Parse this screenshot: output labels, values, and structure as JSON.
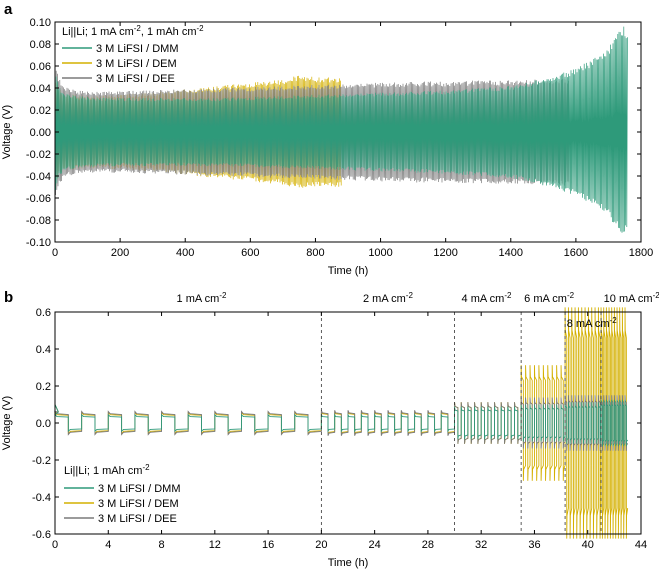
{
  "chart_data": [
    {
      "panel_label": "a",
      "type": "line",
      "title": "",
      "xlabel": "Time (h)",
      "ylabel": "Voltage (V)",
      "xlim": [
        0,
        1800
      ],
      "ylim": [
        -0.1,
        0.1
      ],
      "x_ticks": [
        0,
        200,
        400,
        600,
        800,
        1000,
        1200,
        1400,
        1600,
        1800
      ],
      "y_ticks": [
        -0.1,
        -0.08,
        -0.06,
        -0.04,
        -0.02,
        0.0,
        0.02,
        0.04,
        0.06,
        0.08,
        0.1
      ],
      "x_tick_labels": [
        "0",
        "200",
        "400",
        "600",
        "800",
        "1000",
        "1200",
        "1400",
        "1600",
        "1800"
      ],
      "y_tick_labels": [
        "-0.10",
        "-0.08",
        "-0.06",
        "-0.04",
        "-0.02",
        "0.00",
        "0.02",
        "0.04",
        "0.06",
        "0.08",
        "0.10"
      ],
      "legend": {
        "title": "Li||Li; 1 mA cm",
        "title_sup": "-2",
        "title_mid": ", 1 mAh cm",
        "title_sup2": "-2",
        "position": "top-left"
      },
      "series": [
        {
          "name": "3 M LiFSI / DMM",
          "color": "#2e9a7a",
          "envelope": {
            "x": [
              0,
              10,
              30,
              60,
              100,
              200,
              300,
              400,
              500,
              600,
              700,
              800,
              900,
              1000,
              1100,
              1200,
              1300,
              1400,
              1450,
              1500,
              1550,
              1600,
              1650,
              1700,
              1730,
              1745,
              1760
            ],
            "upper": [
              0.058,
              0.042,
              0.036,
              0.033,
              0.032,
              0.031,
              0.031,
              0.031,
              0.031,
              0.032,
              0.033,
              0.034,
              0.035,
              0.036,
              0.037,
              0.038,
              0.04,
              0.042,
              0.045,
              0.049,
              0.053,
              0.058,
              0.066,
              0.077,
              0.09,
              0.098,
              0.09
            ],
            "lower": [
              -0.058,
              -0.042,
              -0.036,
              -0.033,
              -0.032,
              -0.031,
              -0.031,
              -0.031,
              -0.031,
              -0.032,
              -0.033,
              -0.034,
              -0.035,
              -0.036,
              -0.037,
              -0.038,
              -0.04,
              -0.042,
              -0.045,
              -0.049,
              -0.053,
              -0.058,
              -0.066,
              -0.077,
              -0.09,
              -0.098,
              -0.09
            ]
          }
        },
        {
          "name": "3 M LiFSI / DEM",
          "color": "#d4b000",
          "envelope": {
            "x": [
              0,
              10,
              30,
              60,
              100,
              200,
              300,
              400,
              500,
              600,
              700,
              750,
              800,
              880
            ],
            "upper": [
              0.05,
              0.04,
              0.035,
              0.034,
              0.033,
              0.034,
              0.036,
              0.039,
              0.042,
              0.045,
              0.048,
              0.052,
              0.05,
              0.05
            ],
            "lower": [
              -0.05,
              -0.04,
              -0.035,
              -0.034,
              -0.033,
              -0.034,
              -0.036,
              -0.039,
              -0.042,
              -0.045,
              -0.048,
              -0.052,
              -0.05,
              -0.05
            ]
          }
        },
        {
          "name": "3 M LiFSI / DEE",
          "color": "#7a7a7a",
          "envelope": {
            "x": [
              0,
              10,
              30,
              60,
              100,
              200,
              300,
              400,
              500,
              600,
              700,
              800,
              900,
              1000,
              1100,
              1200,
              1300,
              1400,
              1500,
              1580
            ],
            "upper": [
              0.062,
              0.05,
              0.042,
              0.038,
              0.037,
              0.037,
              0.038,
              0.039,
              0.04,
              0.041,
              0.042,
              0.043,
              0.044,
              0.045,
              0.046,
              0.046,
              0.047,
              0.047,
              0.048,
              0.049
            ],
            "lower": [
              -0.062,
              -0.05,
              -0.042,
              -0.038,
              -0.037,
              -0.037,
              -0.038,
              -0.039,
              -0.04,
              -0.041,
              -0.042,
              -0.043,
              -0.044,
              -0.045,
              -0.046,
              -0.046,
              -0.047,
              -0.047,
              -0.048,
              -0.049
            ]
          }
        }
      ]
    },
    {
      "panel_label": "b",
      "type": "line",
      "title": "",
      "xlabel": "Time (h)",
      "ylabel": "Voltage (V)",
      "xlim": [
        0,
        44
      ],
      "ylim": [
        -0.6,
        0.6
      ],
      "x_ticks": [
        0,
        4,
        8,
        12,
        16,
        20,
        24,
        28,
        32,
        36,
        40,
        44
      ],
      "y_ticks": [
        -0.6,
        -0.4,
        -0.2,
        0.0,
        0.2,
        0.4,
        0.6
      ],
      "x_tick_labels": [
        "0",
        "4",
        "8",
        "12",
        "16",
        "20",
        "24",
        "28",
        "32",
        "36",
        "40",
        "44"
      ],
      "y_tick_labels": [
        "-0.6",
        "-0.4",
        "-0.2",
        "0.0",
        "0.2",
        "0.4",
        "0.6"
      ],
      "dividers": [
        20,
        30,
        35,
        38.3,
        41
      ],
      "annotations": [
        {
          "text": "1 mA cm",
          "sup": "-2",
          "x": 11
        },
        {
          "text": "2 mA cm",
          "sup": "-2",
          "x": 25
        },
        {
          "text": "4 mA cm",
          "sup": "-2",
          "x": 32.4
        },
        {
          "text": "6 mA cm",
          "sup": "-2",
          "x": 37.1
        },
        {
          "text": "8 mA cm",
          "sup": "-2",
          "x": 40.3
        },
        {
          "text": "10 mA cm",
          "sup": "-2",
          "x": 43.3
        }
      ],
      "legend": {
        "title": "Li||Li; 1 mAh cm",
        "title_sup": "-2",
        "position": "bottom-left"
      },
      "segments": [
        {
          "from": 0,
          "to": 20,
          "period": 2,
          "amp": {
            "dmm": 0.035,
            "dem": 0.045,
            "dee": 0.05
          }
        },
        {
          "from": 20,
          "to": 30,
          "period": 1,
          "amp": {
            "dmm": 0.035,
            "dem": 0.05,
            "dee": 0.055
          }
        },
        {
          "from": 30,
          "to": 35,
          "period": 0.5,
          "amp": {
            "dmm": 0.07,
            "dem": 0.09,
            "dee": 0.09
          }
        },
        {
          "from": 35,
          "to": 38.3,
          "period": 0.333,
          "amp": {
            "dmm": 0.08,
            "dem": 0.25,
            "dee": 0.11
          }
        },
        {
          "from": 38.3,
          "to": 41,
          "period": 0.25,
          "amp": {
            "dmm": 0.09,
            "dem": 0.5,
            "dee": 0.12
          }
        },
        {
          "from": 41,
          "to": 43,
          "period": 0.2,
          "amp": {
            "dmm": 0.1,
            "dem": 0.5,
            "dee": 0.12
          }
        }
      ],
      "series": [
        {
          "key": "dmm",
          "name": "3 M LiFSI / DMM",
          "color": "#2e9a7a"
        },
        {
          "key": "dem",
          "name": "3 M LiFSI / DEM",
          "color": "#d4b000"
        },
        {
          "key": "dee",
          "name": "3 M LiFSI / DEE",
          "color": "#7a7a7a"
        }
      ]
    }
  ]
}
